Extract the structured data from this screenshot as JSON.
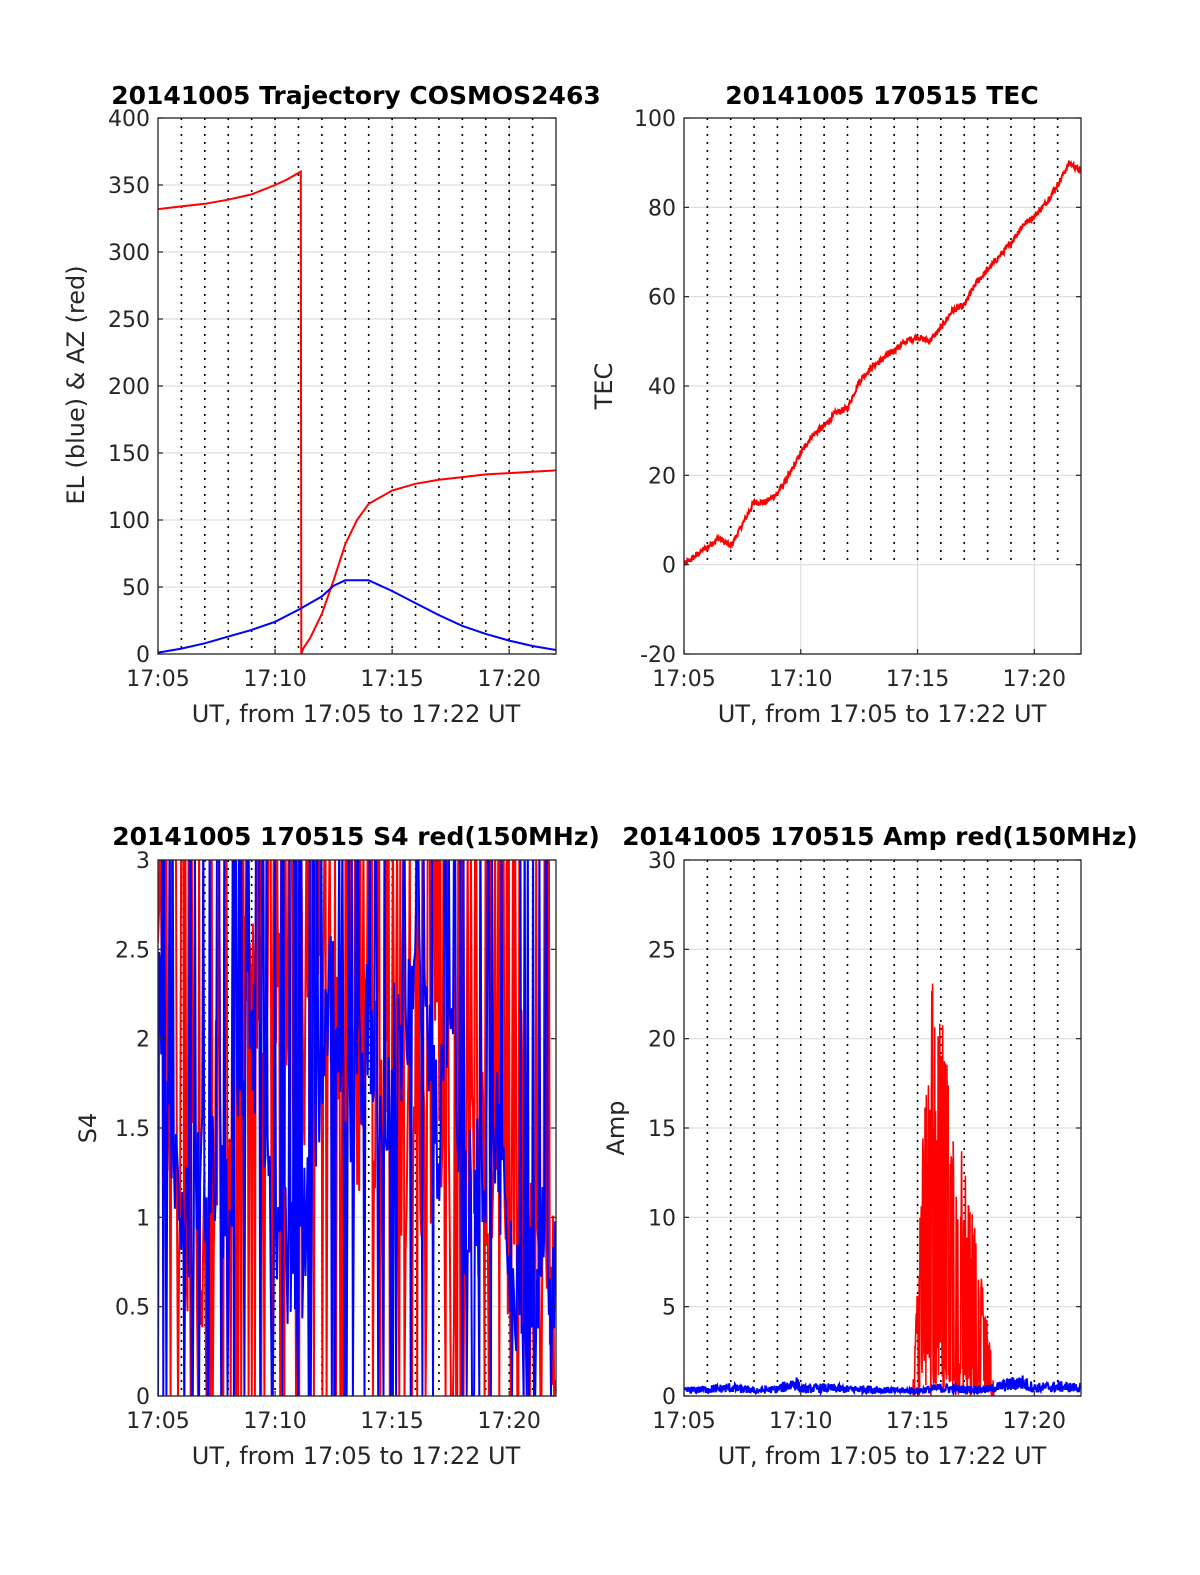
{
  "chart_data": [
    {
      "id": "traj",
      "type": "line",
      "title": "20141005 Trajectory COSMOS2463",
      "xlabel": "UT, from 17:05 to 17:22 UT",
      "ylabel": "EL (blue) & AZ (red)",
      "xlim": [
        0,
        17
      ],
      "ylim": [
        0,
        400
      ],
      "xticks": [
        0,
        5,
        10,
        15
      ],
      "xtick_labels": [
        "17:05",
        "17:10",
        "17:15",
        "17:20"
      ],
      "yticks": [
        0,
        50,
        100,
        150,
        200,
        250,
        300,
        350,
        400
      ],
      "ytick_labels": [
        "0",
        "50",
        "100",
        "150",
        "200",
        "250",
        "300",
        "350",
        "400"
      ],
      "grid": true,
      "dotted_minute_lines": true,
      "series": [
        {
          "color": "#ff0000",
          "x": [
            0,
            1,
            2,
            3,
            4,
            5,
            5.5,
            6.1,
            6.12,
            6.2,
            6.5,
            7,
            7.5,
            8,
            8.5,
            9,
            10,
            11,
            12,
            13,
            14,
            15,
            16,
            17
          ],
          "y": [
            332,
            334,
            336,
            339,
            343,
            350,
            354,
            360,
            0,
            4,
            12,
            30,
            55,
            82,
            100,
            112,
            122,
            127,
            130,
            132,
            134,
            135,
            136,
            137
          ]
        },
        {
          "color": "#0000ff",
          "x": [
            0,
            1,
            2,
            3,
            4,
            5,
            6,
            7,
            7.5,
            8,
            9,
            10,
            11,
            12,
            13,
            14,
            15,
            16,
            17
          ],
          "y": [
            1,
            4,
            8,
            13,
            18,
            24,
            33,
            43,
            51,
            55,
            55,
            47,
            38,
            29,
            21,
            15,
            10,
            6,
            3
          ]
        }
      ]
    },
    {
      "id": "tec",
      "type": "line",
      "title": "20141005 170515 TEC",
      "xlabel": "UT, from 17:05 to 17:22 UT",
      "ylabel": "TEC",
      "xlim": [
        0,
        17
      ],
      "ylim": [
        -20,
        100
      ],
      "xticks": [
        0,
        5,
        10,
        15
      ],
      "xtick_labels": [
        "17:05",
        "17:10",
        "17:15",
        "17:20"
      ],
      "yticks": [
        -20,
        0,
        20,
        40,
        60,
        80,
        100
      ],
      "ytick_labels": [
        "-20",
        "0",
        "20",
        "40",
        "60",
        "80",
        "100"
      ],
      "grid": true,
      "dotted_minute_lines": true,
      "dotted_from_y": 0,
      "series": [
        {
          "color": "#ff0000",
          "x": [
            0,
            0.5,
            1,
            1.5,
            2,
            2.5,
            3,
            3.5,
            4,
            4.5,
            5,
            5.5,
            6,
            6.5,
            7,
            7.5,
            8,
            8.5,
            9,
            9.5,
            10,
            10.5,
            11,
            11.5,
            12,
            12.5,
            13,
            13.5,
            14,
            14.5,
            15,
            15.5,
            16,
            16.5,
            17
          ],
          "y": [
            0,
            2,
            4,
            6,
            4,
            9,
            14,
            14,
            16,
            20,
            25,
            29,
            31,
            34,
            35,
            41,
            44,
            46,
            48,
            50,
            51,
            50,
            53,
            57,
            58,
            63,
            66,
            69,
            72,
            76,
            78,
            81,
            85,
            90,
            88
          ]
        }
      ]
    },
    {
      "id": "s4",
      "type": "line",
      "title": "20141005 170515 S4 red(150MHz)",
      "xlabel": "UT, from 17:05 to 17:22 UT",
      "ylabel": "S4",
      "xlim": [
        0,
        17
      ],
      "ylim": [
        0,
        3
      ],
      "xticks": [
        0,
        5,
        10,
        15
      ],
      "xtick_labels": [
        "17:05",
        "17:10",
        "17:15",
        "17:20"
      ],
      "yticks": [
        0,
        0.5,
        1,
        1.5,
        2,
        2.5,
        3
      ],
      "ytick_labels": [
        "0",
        "0.5",
        "1",
        "1.5",
        "2",
        "2.5",
        "3"
      ],
      "grid": true,
      "dotted_minute_lines": true,
      "series": [
        {
          "color": "#ff0000",
          "x": [
            0,
            0.5,
            1,
            1.5,
            2,
            2.5,
            3,
            3.5,
            4,
            4.5,
            5,
            5.5,
            6,
            6.5,
            7,
            7.5,
            8,
            8.5,
            9,
            9.5,
            10,
            10.5,
            11,
            11.5,
            12,
            12.5,
            13,
            13.5,
            14,
            14.5,
            15,
            15.5,
            16,
            16.5,
            17
          ],
          "y": [
            2.6,
            1.5,
            0.9,
            1.2,
            0.7,
            1.6,
            1.2,
            2.0,
            2.4,
            1.8,
            2.2,
            1.9,
            1.7,
            2.1,
            2.6,
            1.7,
            2.0,
            1.5,
            1.9,
            1.6,
            2.2,
            1.3,
            1.5,
            1.1,
            2.0,
            0.8,
            1.5,
            1.1,
            1.3,
            1.4,
            0.9,
            2.0,
            0.6,
            0.7,
            0.6
          ]
        },
        {
          "color": "#0000ff",
          "x": [
            0,
            0.5,
            1,
            1.5,
            2,
            2.5,
            3,
            3.5,
            4,
            4.5,
            5,
            5.5,
            6,
            6.5,
            7,
            7.5,
            8,
            8.5,
            9,
            9.5,
            10,
            10.5,
            11,
            11.5,
            12,
            12.5,
            13,
            13.5,
            14,
            14.5,
            15,
            15.5,
            16,
            16.5,
            17
          ],
          "y": [
            2.4,
            1.3,
            1.0,
            1.1,
            1.2,
            1.2,
            1.0,
            1.8,
            2.2,
            1.2,
            0.8,
            0.8,
            0.6,
            1.2,
            2.0,
            2.3,
            1.5,
            1.7,
            2.2,
            1.4,
            2.0,
            1.8,
            2.5,
            2.0,
            1.4,
            2.3,
            0.9,
            1.2,
            1.3,
            1.5,
            0.7,
            0.6,
            0.7,
            0.8,
            0.75
          ]
        }
      ]
    },
    {
      "id": "amp",
      "type": "area",
      "title": "20141005 170515 Amp red(150MHz)",
      "xlabel": "UT, from 17:05 to 17:22 UT",
      "ylabel": "Amp",
      "xlim": [
        0,
        17
      ],
      "ylim": [
        0,
        30
      ],
      "xticks": [
        0,
        5,
        10,
        15
      ],
      "xtick_labels": [
        "17:05",
        "17:10",
        "17:15",
        "17:20"
      ],
      "yticks": [
        0,
        5,
        10,
        15,
        20,
        25,
        30
      ],
      "ytick_labels": [
        "0",
        "5",
        "10",
        "15",
        "20",
        "25",
        "30"
      ],
      "grid": true,
      "dotted_minute_lines": true,
      "series": [
        {
          "color": "#ff0000",
          "x": [
            9.8,
            10.1,
            10.3,
            10.5,
            10.7,
            10.9,
            11.1,
            11.3,
            11.5,
            11.7,
            11.9,
            12.1,
            12.3,
            12.5,
            12.7,
            12.9,
            13.1,
            13.3
          ],
          "y": [
            0.5,
            10,
            18,
            22,
            24,
            21,
            22,
            18,
            16,
            11,
            14,
            12,
            11,
            9,
            7,
            5,
            3,
            0.5
          ]
        },
        {
          "color": "#0000ff",
          "x": [
            0,
            1,
            2,
            3,
            4,
            4.8,
            5,
            6,
            7,
            8,
            9,
            10,
            11,
            12,
            13,
            14,
            14.5,
            15,
            16,
            17
          ],
          "y": [
            0.4,
            0.5,
            0.6,
            0.4,
            0.5,
            1.0,
            0.5,
            0.6,
            0.5,
            0.5,
            0.4,
            0.4,
            0.6,
            0.5,
            0.5,
            0.9,
            1.0,
            0.6,
            0.7,
            0.6
          ]
        }
      ]
    }
  ]
}
